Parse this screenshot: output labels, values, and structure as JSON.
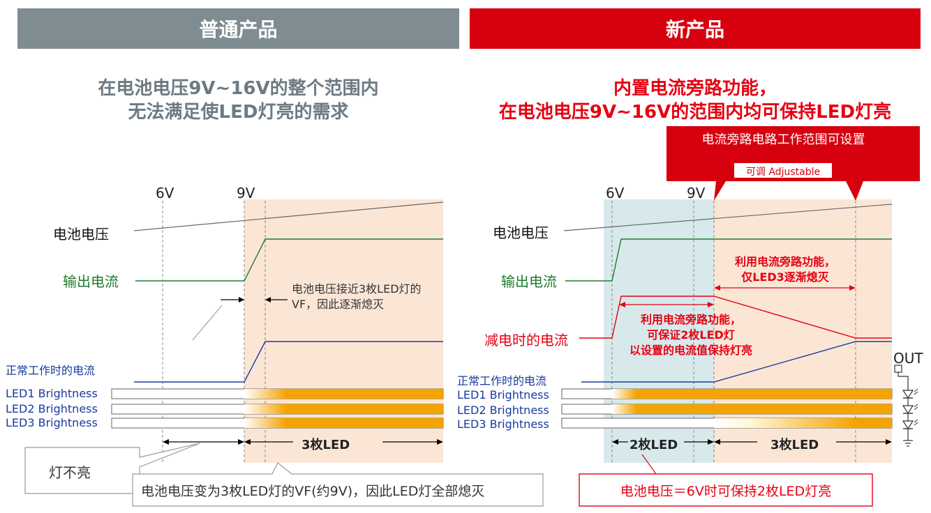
{
  "left": {
    "header": "普通产品",
    "title_line1": "在电池电压9V~16V的整个范围内",
    "title_line2": "无法满足使LED灯亮的需求",
    "v6": "6V",
    "v9": "9V",
    "battery_voltage": "电池电压",
    "output_current": "输出电流",
    "annotation_line1": "电池电压接近3枚LED灯的",
    "annotation_line2": "VF，因此逐渐熄灭",
    "normal_current": "正常工作时的电流",
    "led1": "LED1 Brightness",
    "led2": "LED2 Brightness",
    "led3": "LED3 Brightness",
    "range_3led": "3枚LED",
    "callout_off": "灯不亮",
    "callout_bottom": "电池电压变为3枚LED灯的VF(约9V)，因此LED灯全部熄灭"
  },
  "right": {
    "header": "新产品",
    "title_line1": "内置电流旁路功能，",
    "title_line2": "在电池电压9V~16V的范围内均可保持LED灯亮",
    "banner_title": "电流旁路电路工作范围可设置",
    "banner_tag": "可调 Adjustable",
    "v6": "6V",
    "v9": "9V",
    "battery_voltage": "电池电压",
    "output_current": "输出电流",
    "bypass_note1_line1": "利用电流旁路功能，",
    "bypass_note1_line2": "仅LED3逐渐熄灭",
    "reduced_current": "减电时的电流",
    "bypass_note2_line1": "利用电流旁路功能，",
    "bypass_note2_line2": "可保证2枚LED灯",
    "bypass_note2_line3": "以设置的电流值保持灯亮",
    "normal_current": "正常工作时的电流",
    "led1": "LED1 Brightness",
    "led2": "LED2 Brightness",
    "led3": "LED3 Brightness",
    "range_2led": "2枚LED",
    "range_3led": "3枚LED",
    "out_label": "OUT",
    "callout_bottom": "电池电压＝6V时可保持2枚LED灯亮"
  },
  "colors": {
    "gray_header": "#7f8c92",
    "red_header": "#d7000f",
    "gray_title": "#6d7a82",
    "red_title": "#e60012",
    "green": "#1e7b2e",
    "blue": "#1a3a9e",
    "peach": "#fbe6d6",
    "teal": "#d8e9ec",
    "amber": "#f4a400"
  }
}
